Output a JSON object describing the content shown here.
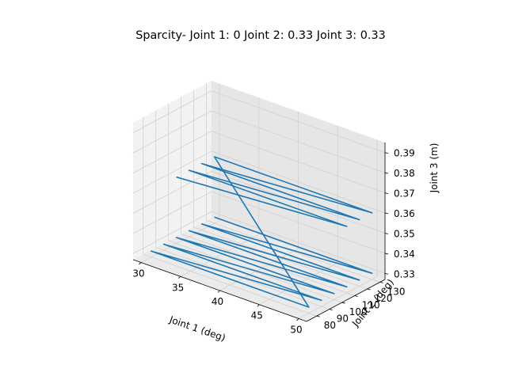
{
  "chart_data": {
    "type": "line",
    "title": "Sparcity- Joint 1: 0 Joint 2: 0.33 Joint 3: 0.33",
    "xlabel": "Joint 1 (deg)",
    "ylabel": "Joint 2 (deg)",
    "zlabel": "Joint 3 (m)",
    "xlim": [
      29,
      51
    ],
    "ylim": [
      72,
      134
    ],
    "zlim": [
      0.327,
      0.395
    ],
    "xticks": [
      "30",
      "35",
      "40",
      "45",
      "50"
    ],
    "yticks": [
      "80",
      "90",
      "100",
      "110",
      "120",
      "130"
    ],
    "zticks": [
      "0.33",
      "0.34",
      "0.35",
      "0.36",
      "0.37",
      "0.38",
      "0.39"
    ],
    "grid": true,
    "series_color": "#1f77b4",
    "series": [
      {
        "x": [
          30,
          30,
          50,
          50,
          30,
          30,
          50,
          50,
          30,
          30,
          50,
          50,
          30,
          30,
          50,
          50,
          30,
          30,
          50,
          50,
          30,
          30,
          50,
          50,
          30,
          30,
          50,
          50,
          30,
          30,
          50,
          50,
          30,
          30,
          50,
          50,
          30
        ],
        "y": [
          130,
          130,
          130,
          130,
          120,
          120,
          120,
          120,
          110,
          110,
          110,
          110,
          100,
          100,
          100,
          100,
          90,
          90,
          90,
          90,
          80,
          80,
          80,
          80,
          130,
          130,
          130,
          130,
          120,
          120,
          120,
          120,
          110,
          110,
          110,
          110,
          100
        ],
        "z": [
          0.33,
          0.33,
          0.33,
          0.33,
          0.33,
          0.33,
          0.33,
          0.33,
          0.33,
          0.33,
          0.33,
          0.33,
          0.33,
          0.33,
          0.33,
          0.33,
          0.33,
          0.33,
          0.33,
          0.33,
          0.33,
          0.33,
          0.33,
          0.33,
          0.36,
          0.36,
          0.36,
          0.36,
          0.36,
          0.36,
          0.36,
          0.36,
          0.36,
          0.36,
          0.36,
          0.36,
          0.36
        ]
      }
    ]
  }
}
